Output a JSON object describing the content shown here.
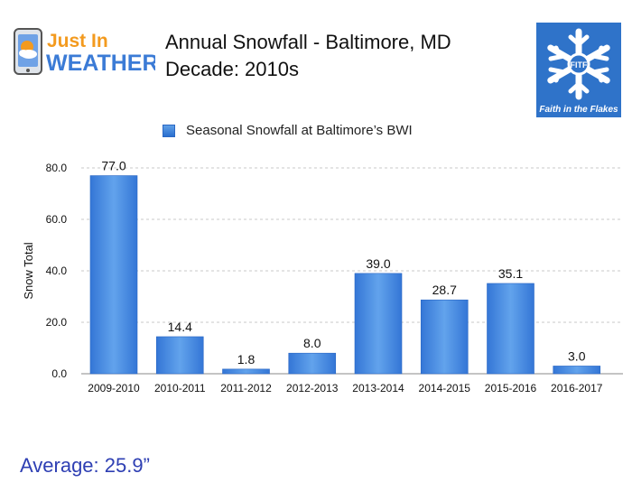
{
  "logo_left": {
    "line1": "Just In",
    "line2": "WEATHER"
  },
  "logo_right": {
    "center_text": "FITF",
    "arc_text": "Faith in the Flakes"
  },
  "header": {
    "title": "Annual Snowfall - Baltimore, MD",
    "subtitle": "Decade: 2010s"
  },
  "footer": {
    "average_text": "Average:  25.9”"
  },
  "colors": {
    "bar": "#3a82dc",
    "bar_light": "#62a3ec",
    "average_text": "#2e3fb3",
    "logo_orange": "#f39a1e",
    "logo_blue": "#3b7bd6",
    "logo_bg": "#2f73c9"
  },
  "chart_data": {
    "type": "bar",
    "title": "",
    "xlabel": "",
    "ylabel": "Snow Total",
    "ylim": [
      0,
      80
    ],
    "yticks": [
      "0.0",
      "20.0",
      "40.0",
      "60.0",
      "80.0"
    ],
    "categories": [
      "2009-2010",
      "2010-2011",
      "2011-2012",
      "2012-2013",
      "2013-2014",
      "2014-2015",
      "2015-2016",
      "2016-2017"
    ],
    "series": [
      {
        "name": "Seasonal Snowfall at Baltimore’s BWI",
        "values": [
          77.0,
          14.4,
          1.8,
          8.0,
          39.0,
          28.7,
          35.1,
          3.0
        ]
      }
    ],
    "data_labels": [
      "77.0",
      "14.4",
      "1.8",
      "8.0",
      "39.0",
      "28.7",
      "35.1",
      "3.0"
    ],
    "grid": true,
    "legend": "top"
  }
}
